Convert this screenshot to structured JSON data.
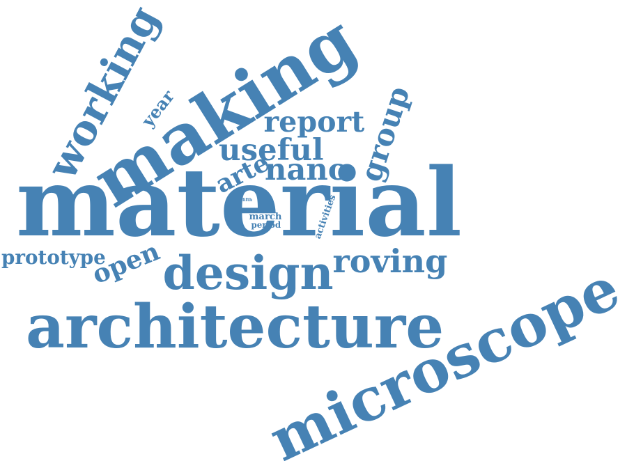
{
  "cloud": {
    "color": "#4682b4",
    "background": "#ffffff",
    "words": [
      {
        "text": "material",
        "weight": 100
      },
      {
        "text": "architecture",
        "weight": 70
      },
      {
        "text": "microscope",
        "weight": 70
      },
      {
        "text": "making",
        "weight": 65
      },
      {
        "text": "design",
        "weight": 52
      },
      {
        "text": "working",
        "weight": 48
      },
      {
        "text": "useful",
        "weight": 35
      },
      {
        "text": "report",
        "weight": 35
      },
      {
        "text": "group",
        "weight": 35
      },
      {
        "text": "roving",
        "weight": 35
      },
      {
        "text": "nano",
        "weight": 33
      },
      {
        "text": "prototype",
        "weight": 25
      },
      {
        "text": "open",
        "weight": 25
      },
      {
        "text": "arte",
        "weight": 20
      },
      {
        "text": "year",
        "weight": 14
      },
      {
        "text": "activities",
        "weight": 9
      },
      {
        "text": "march",
        "weight": 9
      },
      {
        "text": "period",
        "weight": 8
      },
      {
        "text": "fifth",
        "weight": 5
      }
    ]
  }
}
